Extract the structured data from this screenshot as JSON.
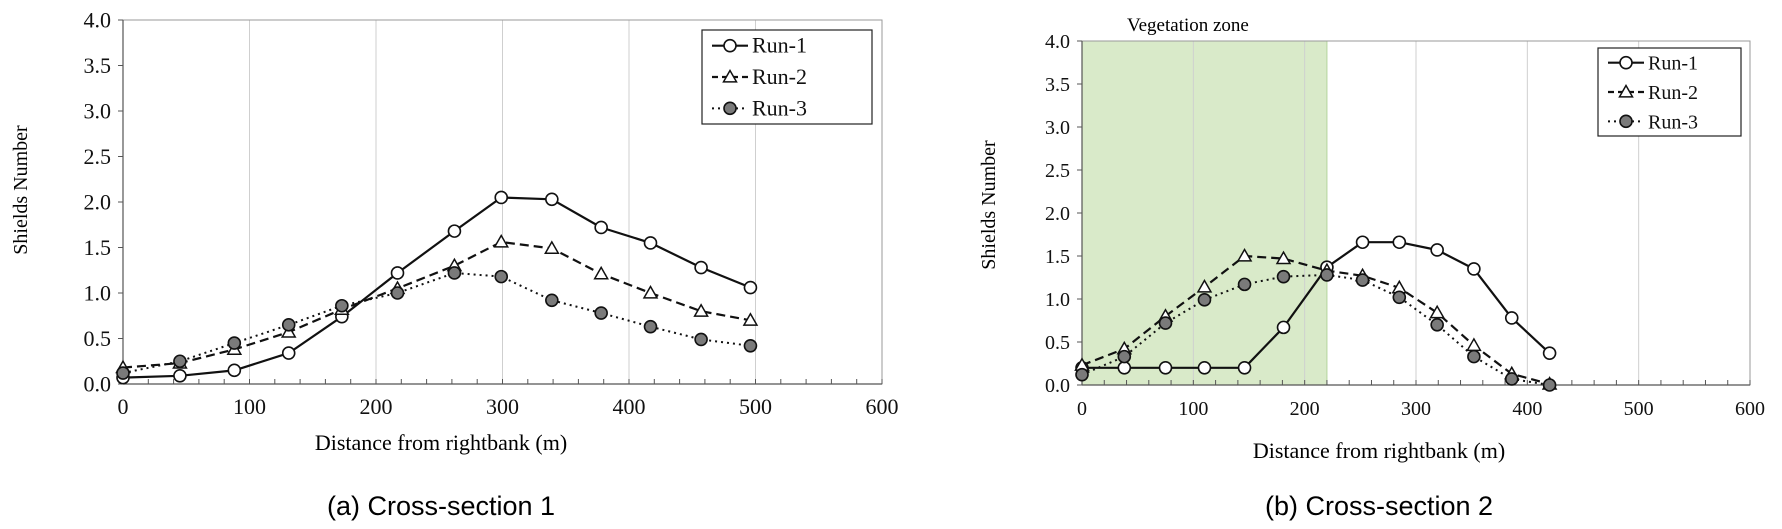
{
  "charts": [
    {
      "caption": "(a)  Cross-section  1",
      "chart_data": {
        "type": "line",
        "xlabel": "Distance from rightbank (m)",
        "ylabel": "Shields Number",
        "xlim": [
          0,
          600
        ],
        "ylim": [
          0,
          4.0
        ],
        "xticks": [
          "0",
          "100",
          "200",
          "300",
          "400",
          "500",
          "600"
        ],
        "yticks": [
          "0.0",
          "0.5",
          "1.0",
          "1.5",
          "2.0",
          "2.5",
          "3.0",
          "3.5",
          "4.0"
        ],
        "grid": "vertical",
        "legend_position": "top-right",
        "series": [
          {
            "name": "Run-1",
            "x": [
              0,
              45,
              88,
              131,
              173,
              217,
              262,
              299,
              339,
              378,
              417,
              457,
              496
            ],
            "y": [
              0.07,
              0.09,
              0.15,
              0.34,
              0.74,
              1.22,
              1.68,
              2.05,
              2.03,
              1.72,
              1.55,
              1.28,
              1.06
            ]
          },
          {
            "name": "Run-2",
            "x": [
              0,
              45,
              88,
              131,
              173,
              217,
              262,
              299,
              339,
              378,
              417,
              457,
              496
            ],
            "y": [
              0.18,
              0.23,
              0.38,
              0.57,
              0.82,
              1.05,
              1.3,
              1.56,
              1.49,
              1.21,
              1.0,
              0.8,
              0.7
            ]
          },
          {
            "name": "Run-3",
            "x": [
              0,
              45,
              88,
              131,
              173,
              217,
              262,
              299,
              339,
              378,
              417,
              457,
              496
            ],
            "y": [
              0.12,
              0.25,
              0.45,
              0.65,
              0.86,
              1.0,
              1.22,
              1.18,
              0.92,
              0.78,
              0.63,
              0.49,
              0.42
            ]
          }
        ]
      }
    },
    {
      "caption": "(b)  Cross-section  2",
      "zone_label": "Vegetation  zone",
      "chart_data": {
        "type": "line",
        "xlabel": "Distance from rightbank (m)",
        "ylabel": "Shields Number",
        "xlim": [
          0,
          600
        ],
        "ylim": [
          0,
          4.0
        ],
        "xticks": [
          "0",
          "100",
          "200",
          "300",
          "400",
          "500",
          "600"
        ],
        "yticks": [
          "0.0",
          "0.5",
          "1.0",
          "1.5",
          "2.0",
          "2.5",
          "3.0",
          "3.5",
          "4.0"
        ],
        "grid": "vertical",
        "legend_position": "top-right",
        "shaded_zone": {
          "x_range": [
            0,
            220
          ],
          "color": "#d9eac9"
        },
        "series": [
          {
            "name": "Run-1",
            "x": [
              0,
              38,
              75,
              110,
              146,
              181,
              220,
              252,
              285,
              319,
              352,
              386,
              420
            ],
            "y": [
              0.2,
              0.2,
              0.2,
              0.2,
              0.2,
              0.67,
              1.37,
              1.66,
              1.66,
              1.57,
              1.35,
              0.78,
              0.37
            ]
          },
          {
            "name": "Run-2",
            "x": [
              0,
              38,
              75,
              110,
              146,
              181,
              220,
              252,
              285,
              319,
              352,
              386,
              420
            ],
            "y": [
              0.23,
              0.42,
              0.8,
              1.14,
              1.5,
              1.47,
              1.33,
              1.27,
              1.13,
              0.84,
              0.46,
              0.13,
              0.01
            ]
          },
          {
            "name": "Run-3",
            "x": [
              0,
              38,
              75,
              110,
              146,
              181,
              220,
              252,
              285,
              319,
              352,
              386,
              420
            ],
            "y": [
              0.12,
              0.33,
              0.72,
              0.99,
              1.17,
              1.26,
              1.28,
              1.22,
              1.02,
              0.7,
              0.33,
              0.07,
              0.0
            ]
          }
        ]
      }
    }
  ]
}
